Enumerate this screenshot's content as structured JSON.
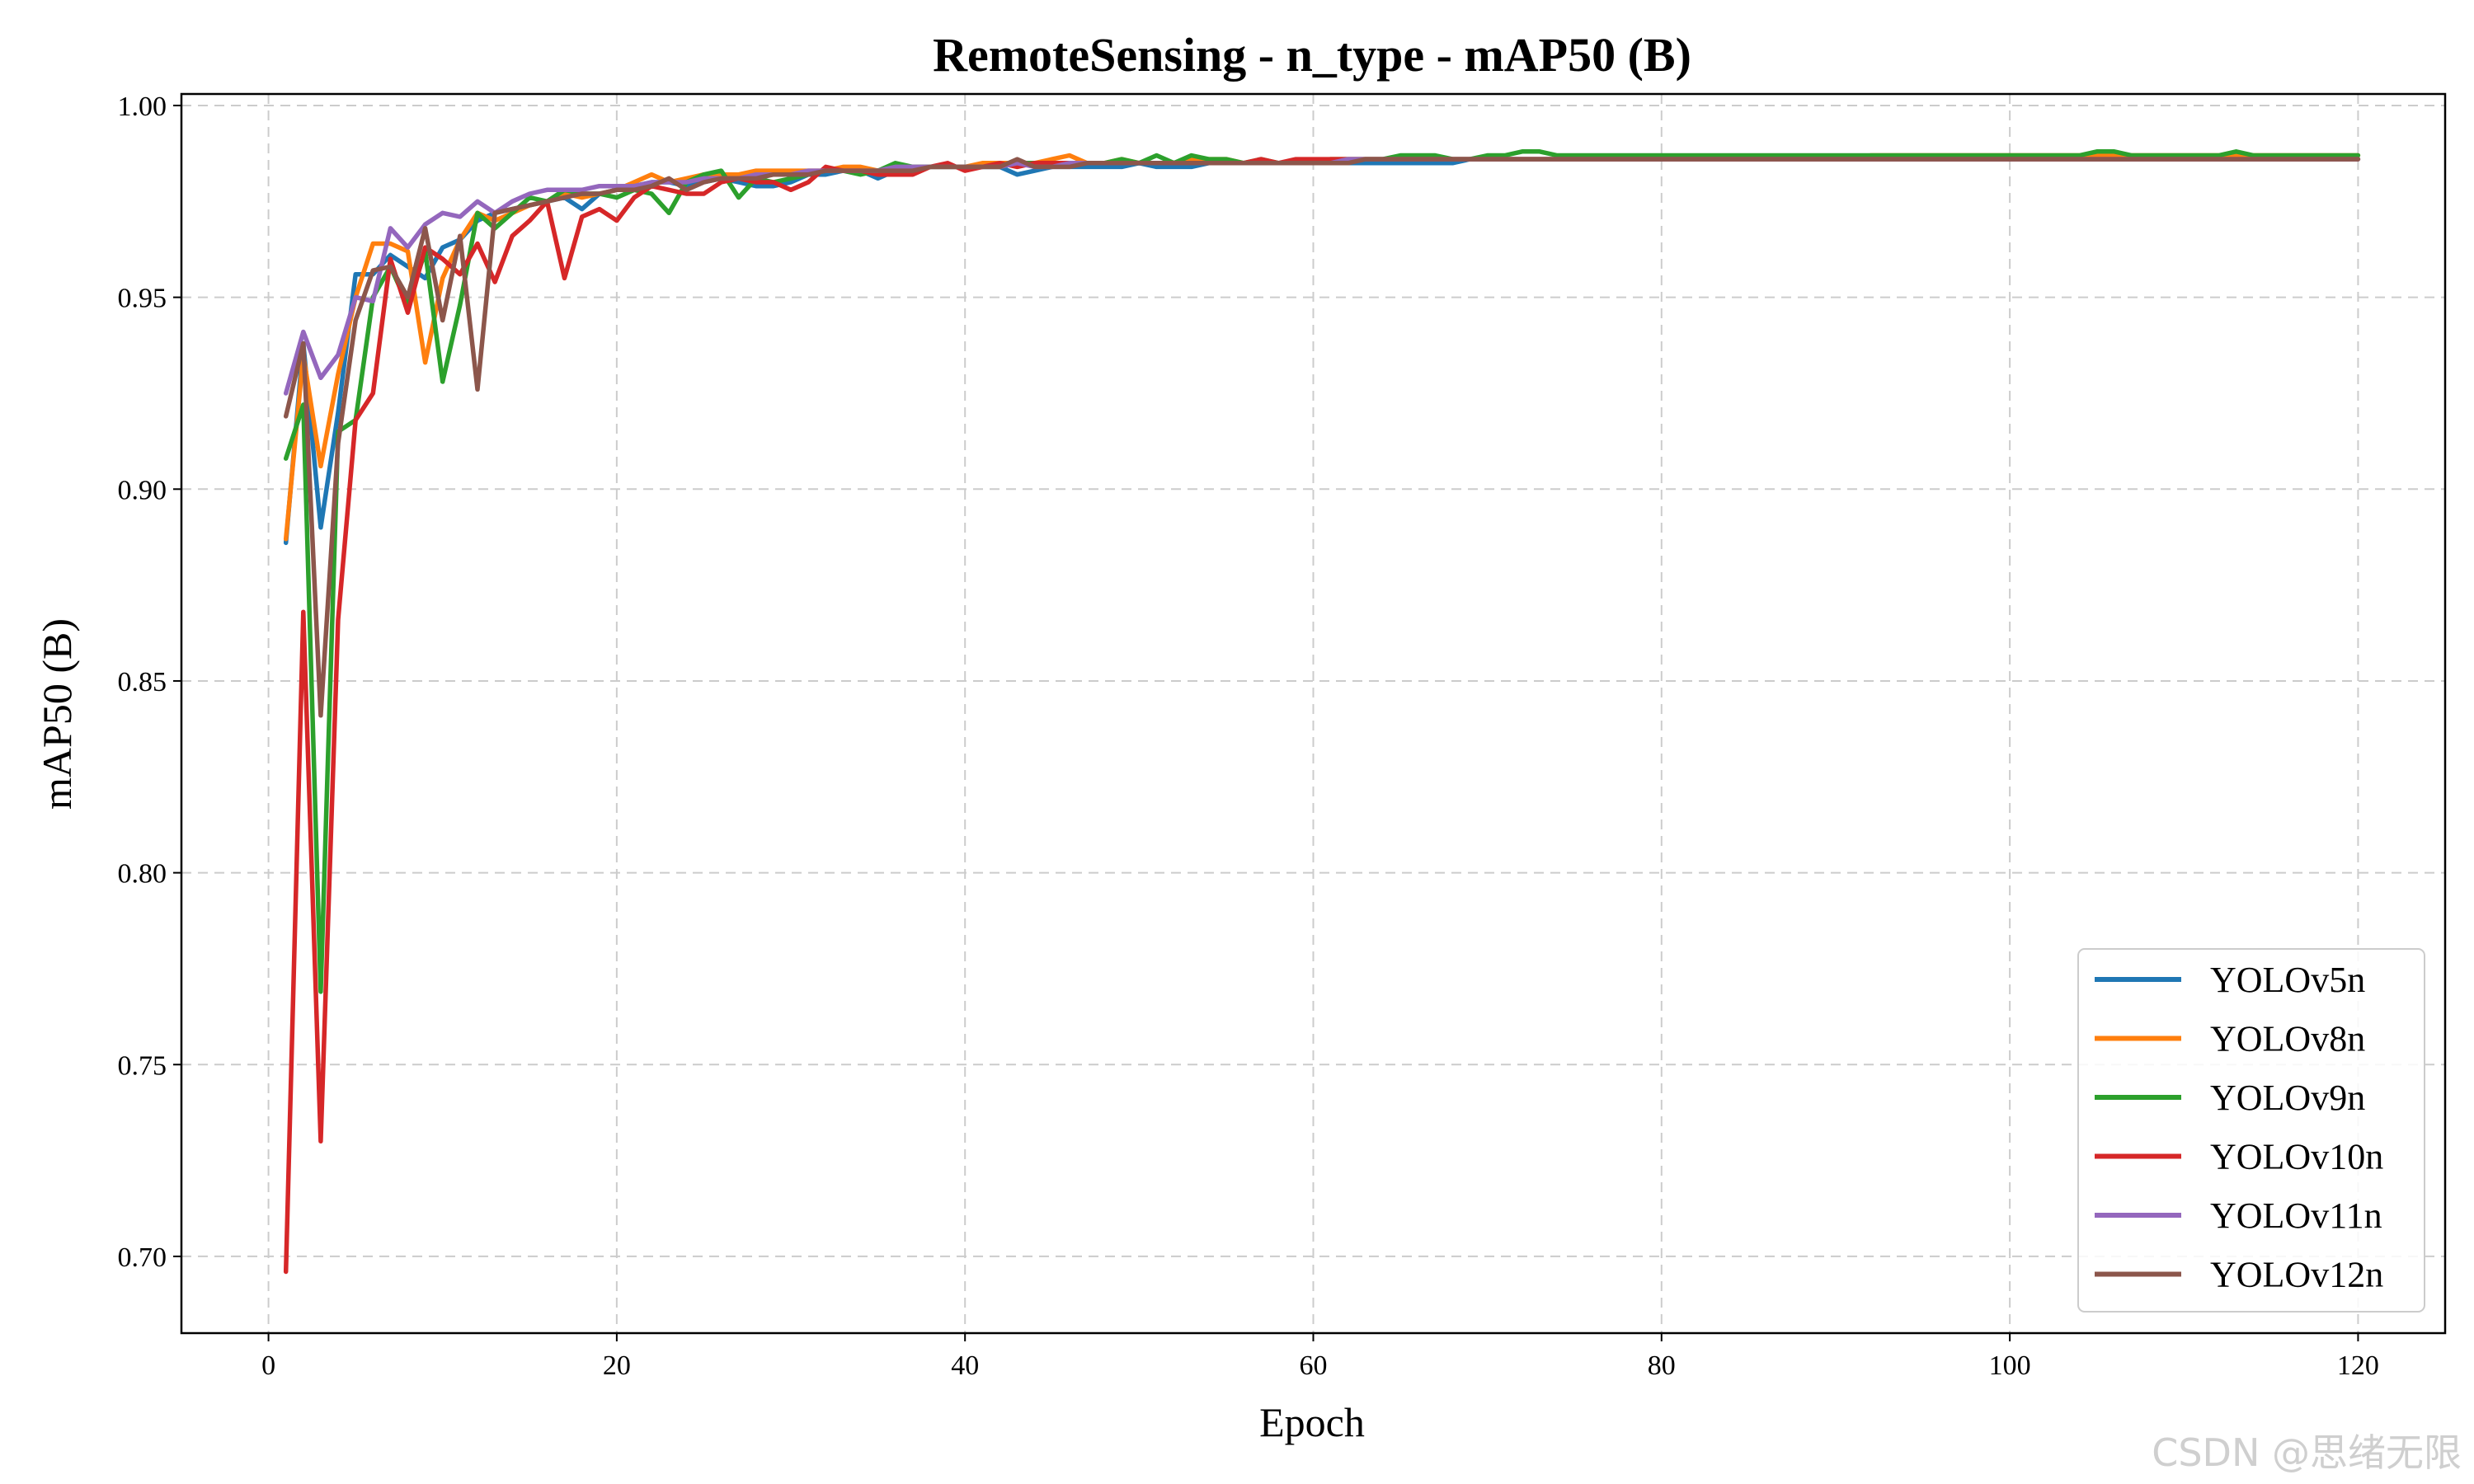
{
  "chart_data": {
    "type": "line",
    "title": "RemoteSensing - n_type - mAP50 (B)",
    "xlabel": "Epoch",
    "ylabel": "mAP50 (B)",
    "xlim": [
      -5,
      125
    ],
    "ylim": [
      0.68,
      1.003
    ],
    "xticks": [
      0,
      20,
      40,
      60,
      80,
      100,
      120
    ],
    "yticks": [
      0.7,
      0.75,
      0.8,
      0.85,
      0.9,
      0.95,
      1.0
    ],
    "ytick_labels": [
      "0.70",
      "0.75",
      "0.80",
      "0.85",
      "0.90",
      "0.95",
      "1.00"
    ],
    "grid": true,
    "legend_position": "bottom-right",
    "x": [
      1,
      2,
      3,
      4,
      5,
      6,
      7,
      8,
      9,
      10,
      11,
      12,
      13,
      14,
      15,
      16,
      17,
      18,
      19,
      20,
      21,
      22,
      23,
      24,
      25,
      26,
      27,
      28,
      29,
      30,
      31,
      32,
      33,
      34,
      35,
      36,
      37,
      38,
      39,
      40,
      41,
      42,
      43,
      44,
      45,
      46,
      47,
      48,
      49,
      50,
      51,
      52,
      53,
      54,
      55,
      56,
      57,
      58,
      59,
      60,
      61,
      62,
      63,
      64,
      65,
      66,
      67,
      68,
      69,
      70,
      71,
      72,
      73,
      74,
      75,
      76,
      77,
      78,
      79,
      80,
      81,
      82,
      83,
      84,
      85,
      86,
      87,
      88,
      89,
      90,
      91,
      92,
      93,
      94,
      95,
      96,
      97,
      98,
      99,
      100,
      101,
      102,
      103,
      104,
      105,
      106,
      107,
      108,
      109,
      110,
      111,
      112,
      113,
      114,
      115,
      116,
      117,
      118,
      119,
      120
    ],
    "series": [
      {
        "name": "YOLOv5n",
        "color": "#1f77b4",
        "values": [
          0.886,
          0.938,
          0.89,
          0.92,
          0.956,
          0.956,
          0.961,
          0.958,
          0.955,
          0.963,
          0.965,
          0.97,
          0.972,
          0.973,
          0.974,
          0.975,
          0.976,
          0.973,
          0.977,
          0.978,
          0.979,
          0.98,
          0.98,
          0.979,
          0.98,
          0.981,
          0.98,
          0.979,
          0.979,
          0.98,
          0.982,
          0.982,
          0.983,
          0.983,
          0.981,
          0.983,
          0.983,
          0.984,
          0.984,
          0.984,
          0.984,
          0.984,
          0.982,
          0.983,
          0.984,
          0.984,
          0.984,
          0.984,
          0.984,
          0.985,
          0.984,
          0.984,
          0.984,
          0.985,
          0.985,
          0.985,
          0.985,
          0.985,
          0.985,
          0.985,
          0.985,
          0.985,
          0.985,
          0.985,
          0.985,
          0.985,
          0.985,
          0.985,
          0.986,
          0.986,
          0.986,
          0.986,
          0.986,
          0.986,
          0.986,
          0.986,
          0.986,
          0.986,
          0.986,
          0.986,
          0.986,
          0.986,
          0.986,
          0.986,
          0.986,
          0.986,
          0.986,
          0.986,
          0.986,
          0.986,
          0.986,
          0.986,
          0.986,
          0.986,
          0.986,
          0.986,
          0.986,
          0.986,
          0.986,
          0.986,
          0.986,
          0.986,
          0.986,
          0.986,
          0.986,
          0.986,
          0.986,
          0.986,
          0.986,
          0.986,
          0.986,
          0.986,
          0.986,
          0.986,
          0.986,
          0.986,
          0.986,
          0.986,
          0.986,
          0.986
        ]
      },
      {
        "name": "YOLOv8n",
        "color": "#ff7f0e",
        "values": [
          0.887,
          0.935,
          0.906,
          0.93,
          0.95,
          0.964,
          0.964,
          0.962,
          0.933,
          0.955,
          0.965,
          0.972,
          0.97,
          0.972,
          0.974,
          0.975,
          0.977,
          0.976,
          0.977,
          0.978,
          0.98,
          0.982,
          0.98,
          0.981,
          0.982,
          0.982,
          0.982,
          0.983,
          0.983,
          0.983,
          0.983,
          0.983,
          0.984,
          0.984,
          0.983,
          0.984,
          0.984,
          0.984,
          0.984,
          0.984,
          0.985,
          0.985,
          0.985,
          0.985,
          0.986,
          0.987,
          0.985,
          0.985,
          0.986,
          0.985,
          0.985,
          0.985,
          0.986,
          0.986,
          0.986,
          0.985,
          0.985,
          0.985,
          0.985,
          0.985,
          0.986,
          0.986,
          0.986,
          0.986,
          0.986,
          0.986,
          0.986,
          0.986,
          0.986,
          0.986,
          0.986,
          0.986,
          0.986,
          0.986,
          0.986,
          0.986,
          0.986,
          0.986,
          0.986,
          0.986,
          0.986,
          0.986,
          0.986,
          0.986,
          0.986,
          0.986,
          0.986,
          0.986,
          0.986,
          0.986,
          0.986,
          0.987,
          0.987,
          0.987,
          0.987,
          0.987,
          0.987,
          0.987,
          0.987,
          0.987,
          0.987,
          0.987,
          0.987,
          0.987,
          0.987,
          0.987,
          0.987,
          0.987,
          0.987,
          0.987,
          0.987,
          0.987,
          0.987,
          0.987,
          0.987,
          0.987,
          0.987,
          0.987,
          0.987,
          0.987
        ]
      },
      {
        "name": "YOLOv9n",
        "color": "#2ca02c",
        "values": [
          0.908,
          0.922,
          0.769,
          0.915,
          0.918,
          0.95,
          0.958,
          0.948,
          0.962,
          0.928,
          0.948,
          0.972,
          0.968,
          0.972,
          0.976,
          0.975,
          0.978,
          0.977,
          0.977,
          0.976,
          0.978,
          0.977,
          0.972,
          0.98,
          0.982,
          0.983,
          0.976,
          0.981,
          0.98,
          0.981,
          0.982,
          0.983,
          0.983,
          0.982,
          0.983,
          0.985,
          0.984,
          0.984,
          0.984,
          0.984,
          0.984,
          0.984,
          0.985,
          0.985,
          0.985,
          0.985,
          0.985,
          0.985,
          0.986,
          0.985,
          0.987,
          0.985,
          0.987,
          0.986,
          0.986,
          0.985,
          0.986,
          0.985,
          0.985,
          0.985,
          0.986,
          0.986,
          0.986,
          0.986,
          0.987,
          0.987,
          0.987,
          0.986,
          0.986,
          0.987,
          0.987,
          0.988,
          0.988,
          0.987,
          0.987,
          0.987,
          0.987,
          0.987,
          0.987,
          0.987,
          0.987,
          0.987,
          0.987,
          0.987,
          0.987,
          0.987,
          0.987,
          0.987,
          0.987,
          0.987,
          0.987,
          0.987,
          0.987,
          0.987,
          0.987,
          0.987,
          0.987,
          0.987,
          0.987,
          0.987,
          0.987,
          0.987,
          0.987,
          0.987,
          0.988,
          0.988,
          0.987,
          0.987,
          0.987,
          0.987,
          0.987,
          0.987,
          0.988,
          0.987,
          0.987,
          0.987,
          0.987,
          0.987,
          0.987,
          0.987
        ]
      },
      {
        "name": "YOLOv10n",
        "color": "#d62728",
        "values": [
          0.696,
          0.868,
          0.73,
          0.866,
          0.918,
          0.925,
          0.96,
          0.946,
          0.963,
          0.96,
          0.956,
          0.964,
          0.954,
          0.966,
          0.97,
          0.975,
          0.955,
          0.971,
          0.973,
          0.97,
          0.976,
          0.979,
          0.978,
          0.977,
          0.977,
          0.98,
          0.981,
          0.98,
          0.98,
          0.978,
          0.98,
          0.984,
          0.983,
          0.983,
          0.982,
          0.982,
          0.982,
          0.984,
          0.985,
          0.983,
          0.984,
          0.985,
          0.984,
          0.985,
          0.985,
          0.985,
          0.985,
          0.985,
          0.985,
          0.985,
          0.985,
          0.985,
          0.985,
          0.985,
          0.985,
          0.985,
          0.986,
          0.985,
          0.986,
          0.986,
          0.986,
          0.986,
          0.986,
          0.986,
          0.986,
          0.986,
          0.986,
          0.986,
          0.986,
          0.986,
          0.986,
          0.986,
          0.986,
          0.986,
          0.986,
          0.986,
          0.986,
          0.986,
          0.986,
          0.986,
          0.986,
          0.986,
          0.986,
          0.986,
          0.986,
          0.986,
          0.986,
          0.986,
          0.986,
          0.986,
          0.986,
          0.986,
          0.986,
          0.986,
          0.986,
          0.986,
          0.986,
          0.986,
          0.986,
          0.986,
          0.986,
          0.986,
          0.986,
          0.986,
          0.986,
          0.986,
          0.986,
          0.986,
          0.986,
          0.986,
          0.986,
          0.986,
          0.986,
          0.986,
          0.986,
          0.986,
          0.986,
          0.986,
          0.986,
          0.986
        ]
      },
      {
        "name": "YOLOv11n",
        "color": "#9467bd",
        "values": [
          0.925,
          0.941,
          0.929,
          0.935,
          0.95,
          0.949,
          0.968,
          0.963,
          0.969,
          0.972,
          0.971,
          0.975,
          0.972,
          0.975,
          0.977,
          0.978,
          0.978,
          0.978,
          0.979,
          0.979,
          0.979,
          0.98,
          0.98,
          0.98,
          0.981,
          0.981,
          0.981,
          0.982,
          0.982,
          0.982,
          0.983,
          0.983,
          0.983,
          0.983,
          0.983,
          0.984,
          0.984,
          0.984,
          0.984,
          0.984,
          0.984,
          0.984,
          0.985,
          0.984,
          0.984,
          0.985,
          0.985,
          0.985,
          0.985,
          0.985,
          0.985,
          0.985,
          0.985,
          0.985,
          0.985,
          0.985,
          0.985,
          0.985,
          0.985,
          0.985,
          0.985,
          0.986,
          0.986,
          0.986,
          0.986,
          0.986,
          0.986,
          0.986,
          0.986,
          0.986,
          0.986,
          0.986,
          0.986,
          0.986,
          0.986,
          0.986,
          0.986,
          0.986,
          0.986,
          0.986,
          0.986,
          0.986,
          0.986,
          0.986,
          0.986,
          0.986,
          0.986,
          0.986,
          0.986,
          0.986,
          0.986,
          0.986,
          0.986,
          0.986,
          0.986,
          0.986,
          0.986,
          0.986,
          0.986,
          0.986,
          0.986,
          0.986,
          0.986,
          0.986,
          0.986,
          0.986,
          0.986,
          0.986,
          0.986,
          0.986,
          0.986,
          0.986,
          0.986,
          0.986,
          0.986,
          0.986,
          0.986,
          0.986,
          0.986,
          0.986
        ]
      },
      {
        "name": "YOLOv12n",
        "color": "#8c564b",
        "values": [
          0.919,
          0.938,
          0.841,
          0.912,
          0.944,
          0.957,
          0.958,
          0.95,
          0.968,
          0.944,
          0.966,
          0.926,
          0.972,
          0.973,
          0.974,
          0.975,
          0.976,
          0.977,
          0.977,
          0.978,
          0.978,
          0.979,
          0.981,
          0.978,
          0.98,
          0.981,
          0.981,
          0.981,
          0.982,
          0.982,
          0.982,
          0.983,
          0.983,
          0.983,
          0.983,
          0.983,
          0.983,
          0.984,
          0.984,
          0.984,
          0.984,
          0.984,
          0.986,
          0.984,
          0.984,
          0.984,
          0.985,
          0.985,
          0.985,
          0.985,
          0.985,
          0.985,
          0.985,
          0.985,
          0.985,
          0.985,
          0.985,
          0.985,
          0.985,
          0.985,
          0.985,
          0.985,
          0.986,
          0.986,
          0.986,
          0.986,
          0.986,
          0.986,
          0.986,
          0.986,
          0.986,
          0.986,
          0.986,
          0.986,
          0.986,
          0.986,
          0.986,
          0.986,
          0.986,
          0.986,
          0.986,
          0.986,
          0.986,
          0.986,
          0.986,
          0.986,
          0.986,
          0.986,
          0.986,
          0.986,
          0.986,
          0.986,
          0.986,
          0.986,
          0.986,
          0.986,
          0.986,
          0.986,
          0.986,
          0.986,
          0.986,
          0.986,
          0.986,
          0.986,
          0.986,
          0.986,
          0.986,
          0.986,
          0.986,
          0.986,
          0.986,
          0.986,
          0.986,
          0.986,
          0.986,
          0.986,
          0.986,
          0.986,
          0.986,
          0.986
        ]
      }
    ]
  },
  "watermark": "CSDN @思绪无限"
}
